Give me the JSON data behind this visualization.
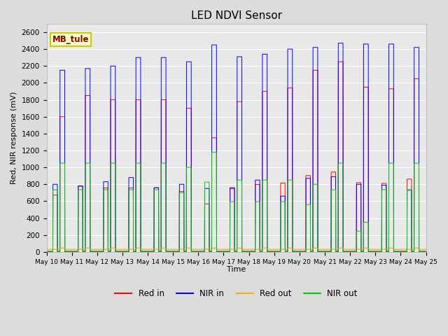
{
  "title": "LED NDVI Sensor",
  "ylabel": "Red, NIR response (mV)",
  "xlabel": "Time",
  "annotation": "MB_tule",
  "ylim": [
    0,
    2700
  ],
  "yticks": [
    0,
    200,
    400,
    600,
    800,
    1000,
    1200,
    1400,
    1600,
    1800,
    2000,
    2200,
    2400,
    2600
  ],
  "x_labels": [
    "May 10",
    "May 11",
    "May 12",
    "May 13",
    "May 14",
    "May 15",
    "May 16",
    "May 17",
    "May 18",
    "May 19",
    "May 20",
    "May 21",
    "May 22",
    "May 23",
    "May 24",
    "May 25"
  ],
  "colors": {
    "red_in": "#ff0000",
    "nir_in": "#0000ff",
    "red_out": "#ffaa00",
    "nir_out": "#00cc00"
  },
  "legend_labels": [
    "Red in",
    "NIR in",
    "Red out",
    "NIR out"
  ],
  "background_color": "#dcdcdc",
  "plot_bg": "#e8e8e8",
  "num_cycles": 15,
  "red_in_peaks": [
    1600,
    1850,
    1800,
    1800,
    1800,
    1700,
    1350,
    1780,
    1900,
    1940,
    2150,
    2250,
    1950,
    1930,
    2050
  ],
  "nir_in_peaks": [
    2150,
    2170,
    2200,
    2300,
    2300,
    2250,
    2450,
    2310,
    2340,
    2400,
    2420,
    2470,
    2460,
    2460,
    2420
  ],
  "nir_out_peaks": [
    1050,
    1050,
    1050,
    1050,
    1050,
    1000,
    1180,
    850,
    850,
    850,
    800,
    1050,
    350,
    1050,
    1050
  ],
  "nir_sub_peaks": [
    800,
    780,
    830,
    880,
    760,
    800,
    750,
    760,
    850,
    660,
    870,
    890,
    800,
    790,
    730
  ],
  "red_out_base": 30,
  "figsize": [
    6.4,
    4.8
  ],
  "dpi": 100
}
